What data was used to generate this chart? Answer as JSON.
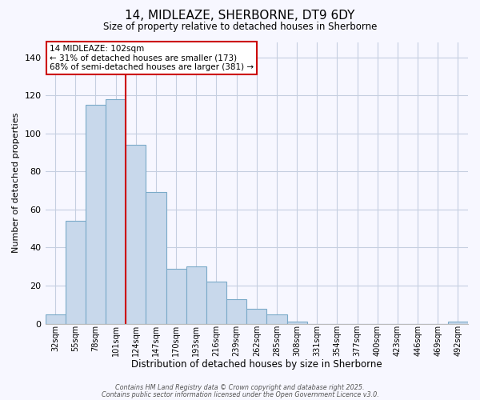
{
  "title": "14, MIDLEAZE, SHERBORNE, DT9 6DY",
  "subtitle": "Size of property relative to detached houses in Sherborne",
  "xlabel": "Distribution of detached houses by size in Sherborne",
  "ylabel": "Number of detached properties",
  "bar_color": "#c8d8eb",
  "bar_edge_color": "#7aaac8",
  "background_color": "#f7f7ff",
  "grid_color": "#c5cfe0",
  "annotation_box_color": "#cc0000",
  "vline_color": "#cc0000",
  "annotation_title": "14 MIDLEAZE: 102sqm",
  "annotation_line2": "← 31% of detached houses are smaller (173)",
  "annotation_line3": "68% of semi-detached houses are larger (381) →",
  "categories": [
    "32sqm",
    "55sqm",
    "78sqm",
    "101sqm",
    "124sqm",
    "147sqm",
    "170sqm",
    "193sqm",
    "216sqm",
    "239sqm",
    "262sqm",
    "285sqm",
    "308sqm",
    "331sqm",
    "354sqm",
    "377sqm",
    "400sqm",
    "423sqm",
    "446sqm",
    "469sqm",
    "492sqm"
  ],
  "values": [
    5,
    54,
    115,
    118,
    94,
    69,
    29,
    30,
    22,
    13,
    8,
    5,
    1,
    0,
    0,
    0,
    0,
    0,
    0,
    0,
    1
  ],
  "ylim": [
    0,
    148
  ],
  "yticks": [
    0,
    20,
    40,
    60,
    80,
    100,
    120,
    140
  ],
  "vline_index": 3,
  "footer1": "Contains HM Land Registry data © Crown copyright and database right 2025.",
  "footer2": "Contains public sector information licensed under the Open Government Licence v3.0."
}
